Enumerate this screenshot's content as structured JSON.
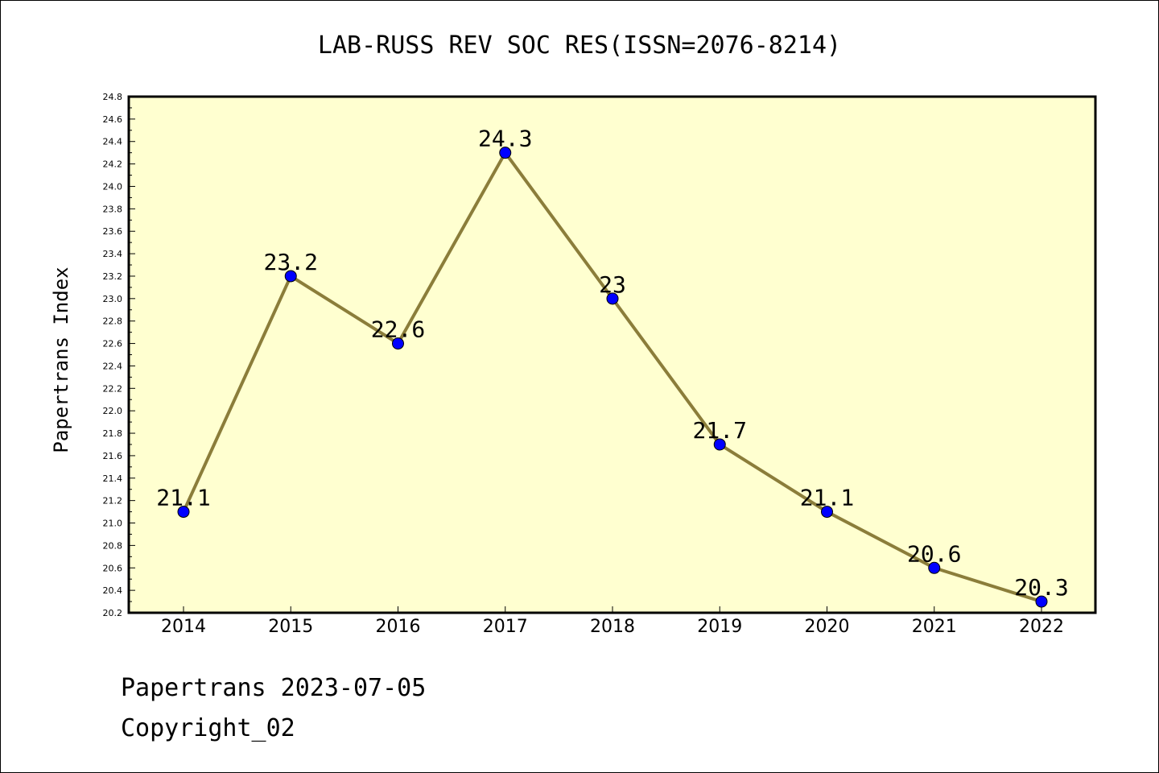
{
  "chart_data": {
    "type": "line",
    "title": "LAB-RUSS REV SOC RES(ISSN=2076-8214)",
    "xlabel": "",
    "ylabel": "Papertrans Index",
    "categories": [
      "2014",
      "2015",
      "2016",
      "2017",
      "2018",
      "2019",
      "2020",
      "2021",
      "2022"
    ],
    "values": [
      21.1,
      23.2,
      22.6,
      24.3,
      23.0,
      21.7,
      21.1,
      20.6,
      20.3
    ],
    "data_labels": [
      "21.1",
      "23.2",
      "22.6",
      "24.3",
      "23",
      "21.7",
      "21.1",
      "20.6",
      "20.3"
    ],
    "ylim": [
      20.2,
      24.8
    ],
    "y_ticks": [
      "20.2",
      "20.4",
      "20.6",
      "20.8",
      "21.0",
      "21.2",
      "21.4",
      "21.6",
      "21.8",
      "22.0",
      "22.2",
      "22.4",
      "22.6",
      "22.8",
      "23.0",
      "23.2",
      "23.4",
      "23.6",
      "23.8",
      "24.0",
      "24.2",
      "24.4",
      "24.6",
      "24.8"
    ],
    "grid": false,
    "colors": {
      "plot_background": "#ffffd0",
      "line": "#8b7d3a",
      "marker": "#0000ff"
    }
  },
  "footer": {
    "line1": "Papertrans 2023-07-05",
    "line2": "Copyright_02"
  }
}
